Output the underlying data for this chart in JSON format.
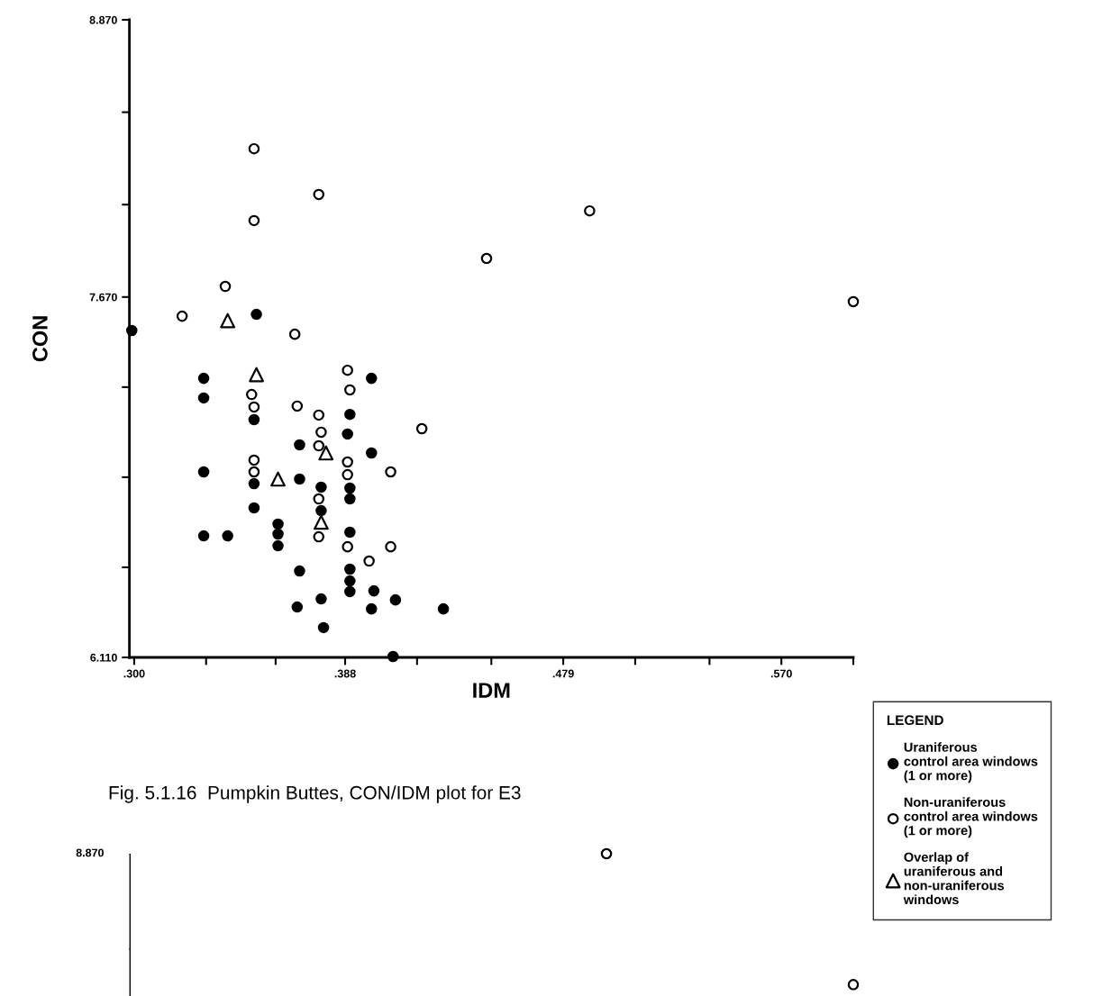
{
  "chart_data": [
    {
      "type": "scatter",
      "xlabel": "IDM",
      "ylabel": "CON",
      "legend_title": "LEGEND",
      "legend": "bottom right",
      "annotations": [
        "Fig. 5.1.16  Pumpkin Buttes, CON/IDM plot for E3"
      ],
      "xlim": [
        0.298,
        0.6
      ],
      "ylim": [
        6.11,
        8.87
      ],
      "xticks": [
        {
          "value": 0.3,
          "label": ".300"
        },
        {
          "value": 0.33,
          "label": null
        },
        {
          "value": 0.359,
          "label": null
        },
        {
          "value": 0.388,
          "label": ".388"
        },
        {
          "value": 0.418,
          "label": null
        },
        {
          "value": 0.449,
          "label": null
        },
        {
          "value": 0.479,
          "label": ".479"
        },
        {
          "value": 0.509,
          "label": null
        },
        {
          "value": 0.54,
          "label": null
        },
        {
          "value": 0.57,
          "label": ".570"
        },
        {
          "value": 0.6,
          "label": null
        }
      ],
      "yticks": [
        {
          "value": 6.11,
          "label": "6.110"
        },
        {
          "value": 6.5,
          "label": null
        },
        {
          "value": 6.89,
          "label": null
        },
        {
          "value": 7.28,
          "label": null
        },
        {
          "value": 7.67,
          "label": "7.670"
        },
        {
          "value": 8.07,
          "label": null
        },
        {
          "value": 8.47,
          "label": null
        },
        {
          "value": 8.87,
          "label": "8.870"
        }
      ],
      "grid": false,
      "series": [
        {
          "name": "Uraniferous\ncontrol area windows\n(1 or more)",
          "color": "#000000",
          "marker": "circle",
          "x": [
            0.299,
            0.351,
            0.329,
            0.329,
            0.35,
            0.329,
            0.35,
            0.35,
            0.329,
            0.339,
            0.36,
            0.36,
            0.36,
            0.399,
            0.39,
            0.389,
            0.369,
            0.399,
            0.39,
            0.39,
            0.369,
            0.378,
            0.378,
            0.39,
            0.369,
            0.39,
            0.39,
            0.39,
            0.4,
            0.378,
            0.409,
            0.368,
            0.399,
            0.429,
            0.379,
            0.408
          ],
          "values": [
            7.525,
            7.595,
            7.318,
            7.233,
            7.139,
            6.913,
            6.862,
            6.757,
            6.636,
            6.636,
            6.687,
            6.644,
            6.593,
            7.318,
            7.162,
            7.077,
            7.03,
            6.995,
            6.843,
            6.796,
            6.882,
            6.847,
            6.745,
            6.652,
            6.484,
            6.492,
            6.441,
            6.395,
            6.398,
            6.363,
            6.359,
            6.328,
            6.32,
            6.32,
            6.239,
            6.114
          ]
        },
        {
          "name": "Non-uraniferous\ncontrol area windows\n(1 or more)",
          "color": "#000000",
          "marker": "circle",
          "x": [
            0.35,
            0.35,
            0.377,
            0.49,
            0.447,
            0.338,
            0.32,
            0.6,
            0.367,
            0.389,
            0.39,
            0.368,
            0.377,
            0.378,
            0.377,
            0.42,
            0.349,
            0.35,
            0.35,
            0.35,
            0.389,
            0.389,
            0.407,
            0.377,
            0.377,
            0.389,
            0.407,
            0.398
          ],
          "values": [
            8.312,
            8.001,
            8.114,
            8.043,
            7.837,
            7.716,
            7.587,
            7.65,
            7.509,
            7.353,
            7.268,
            7.198,
            7.159,
            7.085,
            7.026,
            7.1,
            7.248,
            7.194,
            6.964,
            6.913,
            6.956,
            6.901,
            6.913,
            6.796,
            6.632,
            6.589,
            6.589,
            6.527
          ]
        },
        {
          "name": "Overlap of\nuraniferous and\nnon-uraniferous\nwindows",
          "color": "#000000",
          "marker": "triangle",
          "x": [
            0.339,
            0.351,
            0.36,
            0.38,
            0.378
          ],
          "values": [
            7.568,
            7.334,
            6.882,
            6.995,
            6.695
          ]
        }
      ]
    },
    {
      "type": "other",
      "annotations": [
        "8.870"
      ]
    }
  ]
}
